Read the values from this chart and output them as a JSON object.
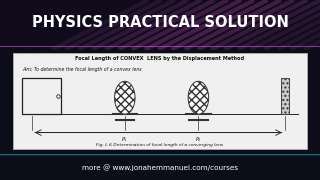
{
  "bg_color": "#0d0d1a",
  "title_text": "PHYSICS PRACTICAL SOLUTION",
  "title_color": "#ffffff",
  "footer_text": "more @ www.jonahemmanuel.com/courses",
  "footer_color": "#ffffff",
  "footer_bg": "#0a1a1a",
  "diagram_title": "Focal Length of CONVEX  LENS by the Displacement Method",
  "diagram_aim": "Aim: To determine the focal length of a convex lens",
  "diagram_caption": "Fig. L 6 Determination of focal length of a converging lens",
  "panel_bg": "#f0f0f0",
  "accent_color": "#cc44bb",
  "accent_color2": "#9933aa"
}
